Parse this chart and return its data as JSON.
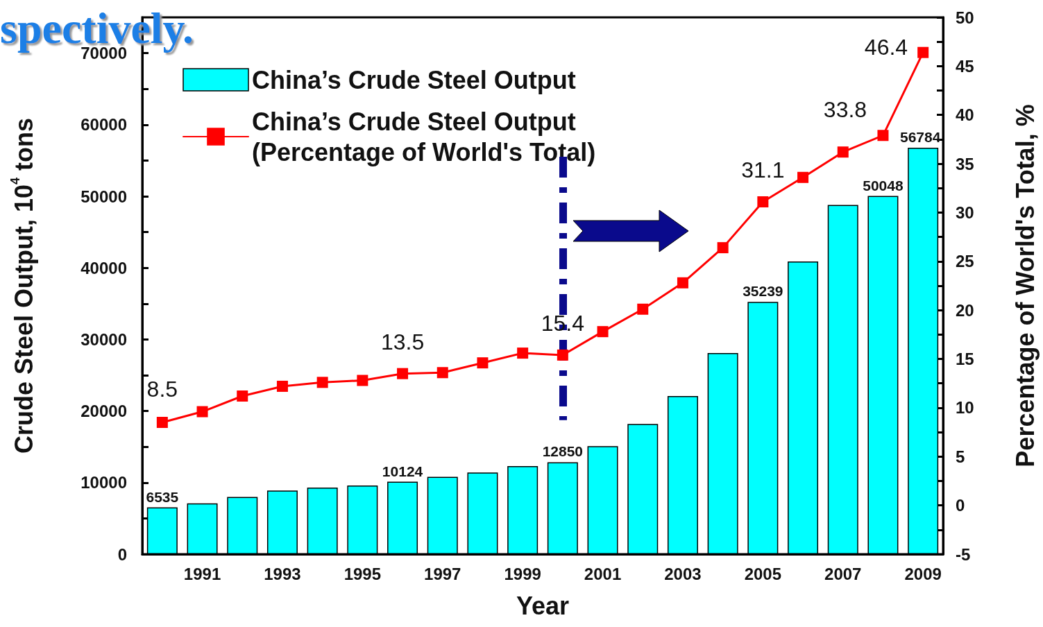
{
  "chart_data": {
    "type": "bar",
    "x": [
      1990,
      1991,
      1992,
      1993,
      1994,
      1995,
      1996,
      1997,
      1998,
      1999,
      2000,
      2001,
      2002,
      2003,
      2004,
      2005,
      2006,
      2007,
      2008,
      2009
    ],
    "xlabel": "Year",
    "ylabel": "Crude Steel Output, 10$^{4}$ tons",
    "y2label": "Percentage of World's Total, %",
    "series": [
      {
        "name": "China’s Crude Steel Output",
        "color": "#00ffff",
        "values": [
          6535,
          7100,
          8000,
          8900,
          9300,
          9600,
          10124,
          10800,
          11400,
          12300,
          12850,
          15100,
          18200,
          22100,
          28100,
          35239,
          40900,
          48800,
          50048,
          56784
        ],
        "value_labels": [
          "6535",
          null,
          null,
          null,
          null,
          null,
          "10124",
          null,
          null,
          null,
          "12850",
          null,
          null,
          null,
          null,
          "35239",
          null,
          null,
          "50048",
          "56784"
        ]
      },
      {
        "name": "China’s Crude Steel Output\n(Percentage of World's Total)",
        "type": "line",
        "axis": "y2",
        "color": "#ff0000",
        "marker": "square",
        "values": [
          8.5,
          9.6,
          11.2,
          12.2,
          12.6,
          12.8,
          13.5,
          13.6,
          14.6,
          15.6,
          15.4,
          17.8,
          20.1,
          22.8,
          26.4,
          31.1,
          33.6,
          36.2,
          37.9,
          46.4
        ],
        "value_labels": [
          "8.5",
          null,
          null,
          null,
          null,
          null,
          "13.5",
          null,
          null,
          null,
          "15.4",
          null,
          null,
          null,
          null,
          "31.1",
          null,
          null,
          null,
          "46.4"
        ]
      }
    ],
    "xlim": [
      1989.5,
      2009.5
    ],
    "xticks": [
      {
        "value": 1990,
        "label": null
      },
      1991,
      {
        "value": 1992,
        "label": null
      },
      1993,
      {
        "value": 1994,
        "label": null
      },
      1995,
      {
        "value": 1996,
        "label": null
      },
      1997,
      {
        "value": 1998,
        "label": null
      },
      1999,
      {
        "value": 2000,
        "label": null
      },
      2001,
      {
        "value": 2002,
        "label": null
      },
      2003,
      {
        "value": 2004,
        "label": null
      },
      2005,
      {
        "value": 2006,
        "label": null
      },
      2007,
      {
        "value": 2008,
        "label": null
      },
      2009
    ],
    "ylim": [
      0,
      75000
    ],
    "yticks": [
      0,
      {
        "value": 5000,
        "label": null
      },
      10000,
      {
        "value": 15000,
        "label": null
      },
      20000,
      {
        "value": 25000,
        "label": null
      },
      30000,
      {
        "value": 35000,
        "label": null
      },
      40000,
      {
        "value": 45000,
        "label": null
      },
      50000,
      {
        "value": 55000,
        "label": null
      },
      60000,
      {
        "value": 65000,
        "label": null
      },
      70000
    ],
    "y2lim": [
      -5,
      50
    ],
    "y2ticks": [
      -5,
      {
        "value": -2.5,
        "label": null
      },
      0,
      {
        "value": 2.5,
        "label": null
      },
      5,
      {
        "value": 7.5,
        "label": null
      },
      10,
      {
        "value": 12.5,
        "label": null
      },
      15,
      {
        "value": 17.5,
        "label": null
      },
      20,
      {
        "value": 22.5,
        "label": null
      },
      25,
      {
        "value": 27.5,
        "label": null
      },
      30,
      {
        "value": 32.5,
        "label": null
      },
      35,
      {
        "value": 37.5,
        "label": null
      },
      40,
      {
        "value": 42.5,
        "label": null
      },
      45,
      {
        "value": 47.5,
        "label": null
      },
      50
    ],
    "ref_lines": [
      {
        "axis": "x",
        "value": 2000,
        "color": "#0a0a8c",
        "line_style": "dashed"
      }
    ],
    "annotations": [
      "spectively.",
      "33.8"
    ],
    "legend": "top left",
    "grid": false
  }
}
